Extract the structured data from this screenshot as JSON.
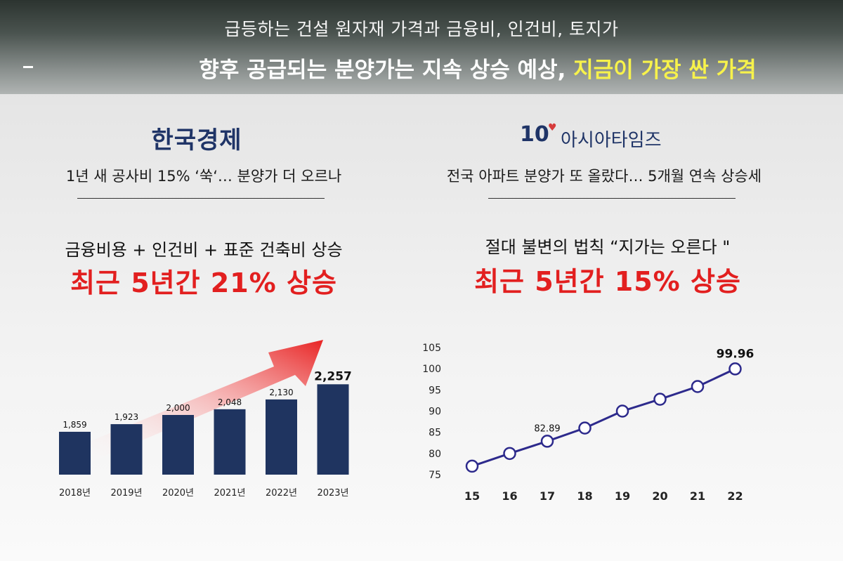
{
  "banner": {
    "line1": "급등하는 건설 원자재 가격과 금융비, 인건비, 토지가",
    "line2_main": "향후 공급되는 분양가는 지속 상승 예상, ",
    "line2_highlight": "지금이 가장 싼 가격"
  },
  "left": {
    "logo": "한국경제",
    "headline": "1년 새 공사비 15% ‘쑥‘… 분양가 더 오르나",
    "sub": "금융비용 + 인건비 + 표준 건축비 상승",
    "big": "최근 5년간 21% 상승"
  },
  "right": {
    "logo_num": "10",
    "logo_text": "아시아타임즈",
    "headline": "전국 아파트 분양가 또 올랐다… 5개월 연속 상승세",
    "sub": "절대 불변의 법칙 “지가는 오른다 \"",
    "big": "최근 5년간 15% 상승"
  },
  "colors": {
    "bar": "#1f3460",
    "line": "#2d2a8c",
    "accent_red": "#e21f1f",
    "highlight_yellow": "#f7f24b"
  },
  "chart_data": [
    {
      "type": "bar",
      "categories": [
        "2018년",
        "2019년",
        "2020년",
        "2021년",
        "2022년",
        "2023년"
      ],
      "values": [
        1859,
        1923,
        2000,
        2048,
        2130,
        2257
      ],
      "value_labels": [
        "1,859",
        "1,923",
        "2,000",
        "2,048",
        "2,130",
        "2,257"
      ],
      "ylim": [
        1500,
        2300
      ],
      "grid": false,
      "annotation": "red upward arrow across bars"
    },
    {
      "type": "line",
      "x": [
        "15",
        "16",
        "17",
        "18",
        "19",
        "20",
        "21",
        "22"
      ],
      "y": [
        77,
        80,
        82.89,
        86,
        90,
        92.8,
        95.8,
        99.96
      ],
      "point_labels": {
        "2": "82.89",
        "7": "99.96"
      },
      "yticks": [
        "75",
        "80",
        "85",
        "90",
        "95",
        "100",
        "105"
      ],
      "ylim": [
        75,
        105
      ],
      "grid": false
    }
  ]
}
